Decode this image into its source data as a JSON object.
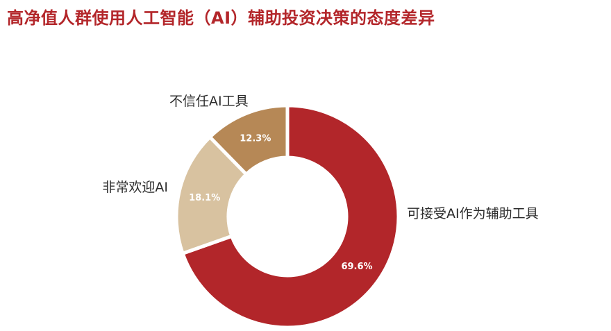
{
  "title": "高净值人群使用人工智能（AI）辅助投资决策的态度差异",
  "chart_data": {
    "type": "pie",
    "donut": true,
    "slices": [
      {
        "label": "可接受AI作为辅助工具",
        "value": 69.6,
        "value_label": "69.6%",
        "color": "#b2262a"
      },
      {
        "label": "非常欢迎AI",
        "value": 18.1,
        "value_label": "18.1%",
        "color": "#d8c2a0"
      },
      {
        "label": "不信任AI工具",
        "value": 12.3,
        "value_label": "12.3%",
        "color": "#b68856"
      }
    ]
  }
}
